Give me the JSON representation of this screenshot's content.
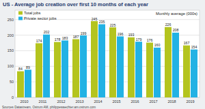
{
  "chart_data": {
    "type": "bar",
    "title": "US - Average job creation over first 10 months of each year",
    "annotations": [
      "Monthly average (000s)",
      "Sources Datastream, Ostrum AM, philippewaechter.am.ostrum.com"
    ],
    "categories": [
      "2010",
      "2011",
      "2012",
      "2013",
      "2014",
      "2015",
      "2016",
      "2017",
      "2018",
      "2019"
    ],
    "series": [
      {
        "name": "Total jobs",
        "color": "#b4c41e",
        "values": [
          84,
          174,
          178,
          187,
          245,
          225,
          193,
          176,
          226,
          167
        ]
      },
      {
        "name": "Private sector jobs",
        "color": "#22b2e4",
        "values": [
          89,
          202,
          183,
          199,
          235,
          196,
          179,
          160,
          208,
          154
        ]
      }
    ],
    "ylim": [
      0,
      280
    ],
    "yticks": [
      0,
      50,
      100,
      150,
      200,
      250
    ],
    "grid": true,
    "legend": "top-left",
    "data_labels": true
  }
}
